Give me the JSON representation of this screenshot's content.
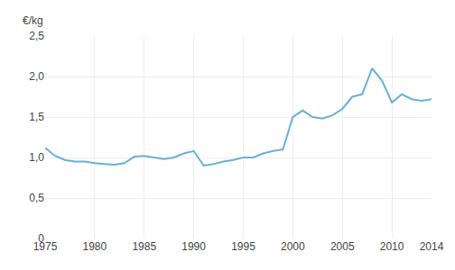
{
  "chart_data": {
    "type": "line",
    "ylabel": "€/kg",
    "x": [
      1975,
      1976,
      1977,
      1978,
      1979,
      1980,
      1981,
      1982,
      1983,
      1984,
      1985,
      1986,
      1987,
      1988,
      1989,
      1990,
      1991,
      1992,
      1993,
      1994,
      1995,
      1996,
      1997,
      1998,
      1999,
      2000,
      2001,
      2002,
      2003,
      2004,
      2005,
      2006,
      2007,
      2008,
      2009,
      2010,
      2011,
      2012,
      2013,
      2014
    ],
    "values": [
      1.12,
      1.02,
      0.97,
      0.95,
      0.95,
      0.93,
      0.92,
      0.91,
      0.93,
      1.01,
      1.02,
      1.0,
      0.98,
      1.0,
      1.05,
      1.08,
      0.9,
      0.92,
      0.95,
      0.97,
      1.0,
      1.0,
      1.05,
      1.08,
      1.1,
      1.5,
      1.58,
      1.5,
      1.48,
      1.52,
      1.6,
      1.75,
      1.78,
      2.1,
      1.95,
      1.68,
      1.78,
      1.72,
      1.7,
      1.72
    ],
    "color": "#6ab0d8",
    "xlim": [
      1975,
      2014
    ],
    "xticks": [
      1975,
      1980,
      1985,
      1990,
      1995,
      2000,
      2005,
      2010,
      2014
    ],
    "ylim": [
      0,
      2.5
    ],
    "yticks": [
      0,
      {
        "value": 0.5,
        "label": "0,5"
      },
      {
        "value": 1.0,
        "label": "1,0"
      },
      {
        "value": 1.5,
        "label": "1,5"
      },
      {
        "value": 2.0,
        "label": "2,0"
      },
      {
        "value": 2.5,
        "label": "2,5"
      }
    ],
    "grid": true
  }
}
